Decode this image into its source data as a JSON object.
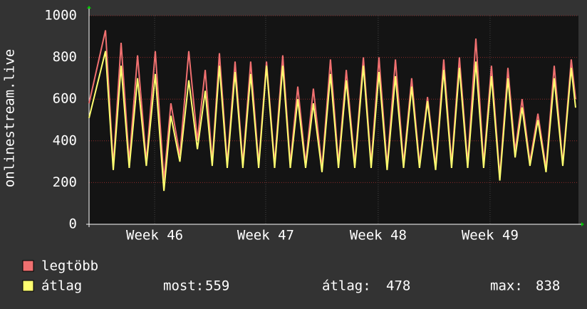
{
  "chart_data": {
    "type": "line",
    "y_label": "onlinestream.live",
    "x": [
      0,
      1.03,
      1.52,
      2.01,
      2.52,
      3.04,
      3.59,
      4.15,
      4.69,
      5.13,
      5.69,
      6.25,
      6.79,
      7.28,
      7.72,
      8.17,
      8.66,
      9.15,
      9.64,
      10.13,
      10.63,
      11.12,
      11.63,
      12.14,
      12.61,
      13.08,
      13.57,
      14.06,
      14.6,
      15.13,
      15.63,
      16.12,
      16.65,
      17.19,
      17.68,
      18.17,
      18.68,
      19.2,
      19.71,
      20.22,
      20.71,
      21.21,
      21.72,
      22.23,
      22.72,
      23.21,
      23.73,
      24.24,
      24.73,
      25.22,
      25.74,
      26.25,
      26.7,
      27.14,
      27.63,
      28.13,
      28.64,
      29.15,
      29.69,
      30.22,
      30.49
    ],
    "xlim": [
      0,
      30.67
    ],
    "xticks": [
      {
        "value": 4.11,
        "label": "Week 46"
      },
      {
        "value": 11.07,
        "label": "Week 47"
      },
      {
        "value": 18.12,
        "label": "Week 48"
      },
      {
        "value": 25.13,
        "label": "Week 49"
      }
    ],
    "ylim": [
      0,
      1000
    ],
    "yticks": [
      0,
      200,
      400,
      600,
      800,
      1000
    ],
    "grid": true,
    "series": [
      {
        "name": "legtöbb",
        "color": "#f07070",
        "values": [
          580,
          930,
          280,
          870,
          300,
          810,
          300,
          830,
          210,
          580,
          330,
          830,
          400,
          740,
          300,
          820,
          290,
          780,
          290,
          780,
          290,
          780,
          290,
          810,
          290,
          660,
          290,
          650,
          270,
          790,
          290,
          740,
          290,
          800,
          290,
          800,
          280,
          790,
          290,
          700,
          290,
          610,
          280,
          790,
          290,
          800,
          290,
          890,
          290,
          760,
          230,
          750,
          350,
          600,
          300,
          530,
          270,
          760,
          290,
          790,
          600
        ]
      },
      {
        "name": "átlag",
        "color": "#ffff70",
        "values": [
          510,
          830,
          260,
          760,
          270,
          700,
          280,
          720,
          160,
          520,
          300,
          690,
          360,
          640,
          280,
          760,
          270,
          730,
          270,
          720,
          270,
          760,
          270,
          760,
          270,
          600,
          270,
          580,
          250,
          720,
          270,
          690,
          270,
          760,
          270,
          730,
          260,
          710,
          270,
          660,
          270,
          590,
          260,
          740,
          270,
          750,
          270,
          780,
          270,
          710,
          210,
          700,
          320,
          560,
          280,
          500,
          250,
          700,
          280,
          750,
          559
        ]
      }
    ],
    "stats": [
      {
        "label": "most:",
        "value": 559
      },
      {
        "label": "átlag:",
        "value": 478
      },
      {
        "label": "max:",
        "value": 838
      }
    ]
  }
}
